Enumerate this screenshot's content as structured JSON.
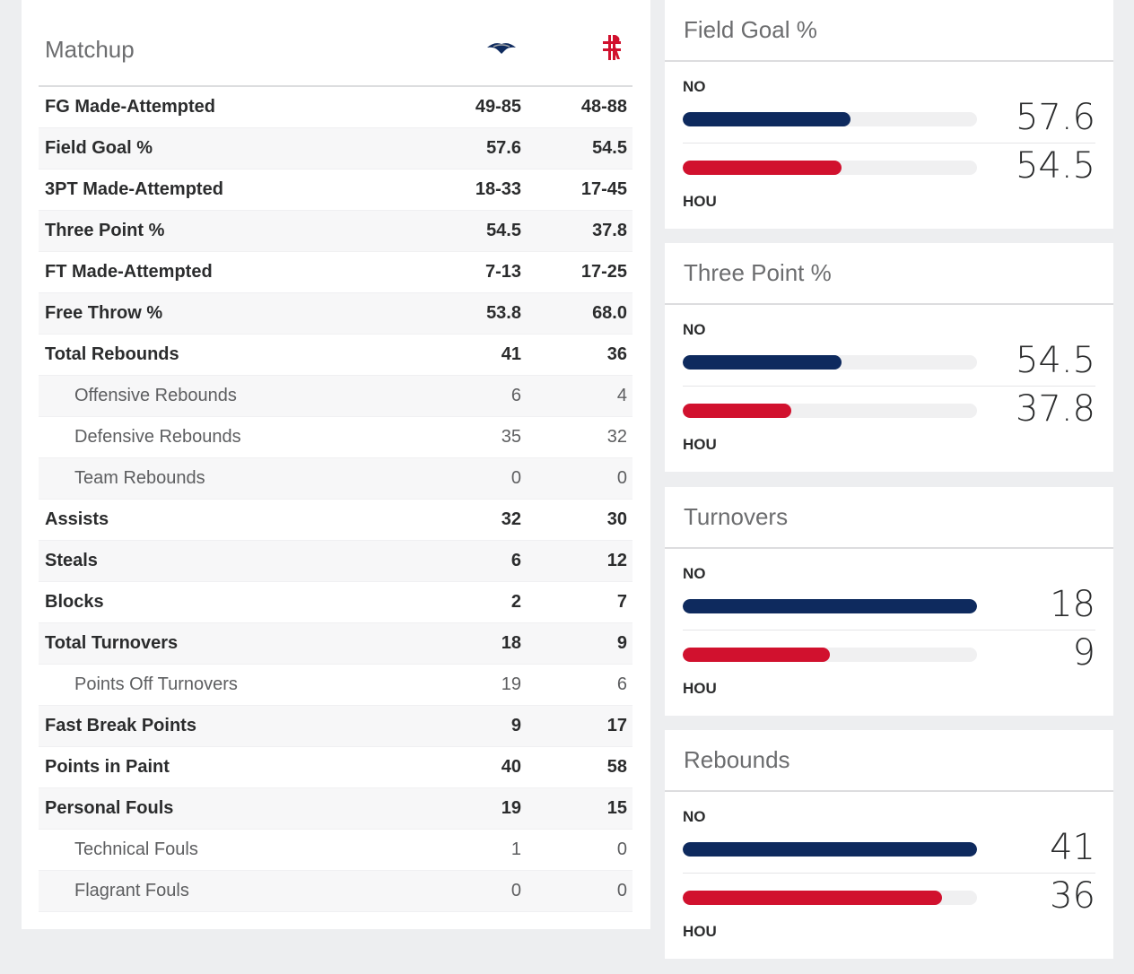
{
  "matchup": {
    "title": "Matchup",
    "rows": [
      {
        "label": "FG Made-Attempted",
        "no": "49-85",
        "hou": "48-88",
        "sub": false
      },
      {
        "label": "Field Goal %",
        "no": "57.6",
        "hou": "54.5",
        "sub": false
      },
      {
        "label": "3PT Made-Attempted",
        "no": "18-33",
        "hou": "17-45",
        "sub": false
      },
      {
        "label": "Three Point %",
        "no": "54.5",
        "hou": "37.8",
        "sub": false
      },
      {
        "label": "FT Made-Attempted",
        "no": "7-13",
        "hou": "17-25",
        "sub": false
      },
      {
        "label": "Free Throw %",
        "no": "53.8",
        "hou": "68.0",
        "sub": false
      },
      {
        "label": "Total Rebounds",
        "no": "41",
        "hou": "36",
        "sub": false
      },
      {
        "label": "Offensive Rebounds",
        "no": "6",
        "hou": "4",
        "sub": true
      },
      {
        "label": "Defensive Rebounds",
        "no": "35",
        "hou": "32",
        "sub": true
      },
      {
        "label": "Team Rebounds",
        "no": "0",
        "hou": "0",
        "sub": true
      },
      {
        "label": "Assists",
        "no": "32",
        "hou": "30",
        "sub": false
      },
      {
        "label": "Steals",
        "no": "6",
        "hou": "12",
        "sub": false
      },
      {
        "label": "Blocks",
        "no": "2",
        "hou": "7",
        "sub": false
      },
      {
        "label": "Total Turnovers",
        "no": "18",
        "hou": "9",
        "sub": false
      },
      {
        "label": "Points Off Turnovers",
        "no": "19",
        "hou": "6",
        "sub": true
      },
      {
        "label": "Fast Break Points",
        "no": "9",
        "hou": "17",
        "sub": false
      },
      {
        "label": "Points in Paint",
        "no": "40",
        "hou": "58",
        "sub": false
      },
      {
        "label": "Personal Fouls",
        "no": "19",
        "hou": "15",
        "sub": false
      },
      {
        "label": "Technical Fouls",
        "no": "1",
        "hou": "0",
        "sub": true
      },
      {
        "label": "Flagrant Fouls",
        "no": "0",
        "hou": "0",
        "sub": true
      }
    ]
  },
  "teams": {
    "no": "NO",
    "hou": "HOU"
  },
  "colors": {
    "no": "#0e2a5e",
    "hou": "#d1112e"
  },
  "stat_cards": [
    {
      "title": "Field Goal %",
      "no_value": "57.6",
      "hou_value": "54.5",
      "no_fill": 0.57,
      "hou_fill": 0.54
    },
    {
      "title": "Three Point %",
      "no_value": "54.5",
      "hou_value": "37.8",
      "no_fill": 0.54,
      "hou_fill": 0.37
    },
    {
      "title": "Turnovers",
      "no_value": "18",
      "hou_value": "9",
      "no_fill": 1.0,
      "hou_fill": 0.5
    },
    {
      "title": "Rebounds",
      "no_value": "41",
      "hou_value": "36",
      "no_fill": 1.0,
      "hou_fill": 0.88
    }
  ]
}
